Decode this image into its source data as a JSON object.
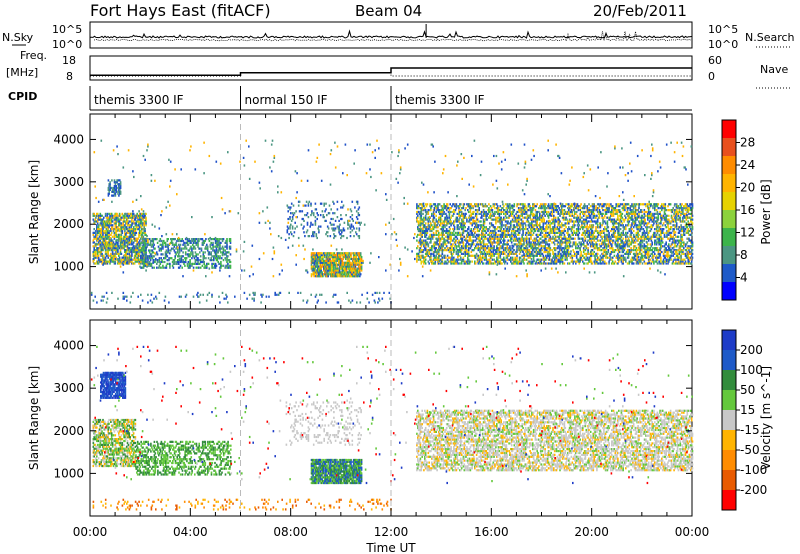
{
  "header": {
    "station": "Fort Hays East (fitACF)",
    "beam": "Beam 04",
    "date": "20/Feb/2011"
  },
  "status_panels": {
    "nsky_label": "N.Sky",
    "nsearch_label": "N.Search",
    "noise_ticks_left": [
      "10^5",
      "10^0"
    ],
    "noise_ticks_right": [
      "10^5",
      "10^0"
    ],
    "freq_label": "Freq.",
    "freq_unit": "[MHz]",
    "freq_ticks": [
      "18",
      "8"
    ],
    "nave_label": "Nave",
    "nave_ticks": [
      "60",
      "0"
    ],
    "cpid_label": "CPID",
    "cpid_segments": [
      {
        "label": "themis 3300 IF",
        "start": 0,
        "end": 6
      },
      {
        "label": "normal 150 IF",
        "start": 6,
        "end": 12
      },
      {
        "label": "themis 3300 IF",
        "start": 12,
        "end": 24
      }
    ],
    "freq_levels": [
      {
        "start": 0,
        "end": 6,
        "value": 10
      },
      {
        "start": 6,
        "end": 12,
        "value": 11
      },
      {
        "start": 12,
        "end": 24,
        "value": 13
      }
    ],
    "nave_levels": [
      {
        "start": 0,
        "end": 6,
        "value": 10
      },
      {
        "start": 6,
        "end": 12,
        "value": 18
      },
      {
        "start": 12,
        "end": 24,
        "value": 10
      }
    ]
  },
  "chart_data": [
    {
      "type": "heatmap",
      "name": "power",
      "ylabel": "Slant Range [km]",
      "xlim": [
        0,
        24
      ],
      "ylim": [
        0,
        4600
      ],
      "yticks": [
        1000,
        2000,
        3000,
        4000
      ],
      "colorbar": {
        "label": "Power [dB]",
        "ticks": [
          "28",
          "24",
          "20",
          "16",
          "12",
          "8",
          "4"
        ],
        "colors": [
          "#ff0000",
          "#e8501e",
          "#ff8c00",
          "#ffb400",
          "#e6d200",
          "#8cd23c",
          "#3cb44b",
          "#4b9682",
          "#1e5ac8",
          "#0000ff"
        ]
      },
      "scatter_regions": [
        {
          "t0": 0.1,
          "t1": 2.2,
          "r0": 1100,
          "r1": 2300,
          "density": 0.6,
          "palette": [
            "#1e50c8",
            "#1e5ac8",
            "#4b9682",
            "#3cb44b",
            "#e6d200",
            "#ffb400"
          ]
        },
        {
          "t0": 0.7,
          "t1": 1.2,
          "r0": 2700,
          "r1": 3100,
          "density": 0.6,
          "palette": [
            "#1e50c8",
            "#4b9682"
          ]
        },
        {
          "t0": 2.0,
          "t1": 5.6,
          "r0": 1000,
          "r1": 1700,
          "density": 0.35,
          "palette": [
            "#1e50c8",
            "#4b9682",
            "#3cb44b"
          ]
        },
        {
          "t0": 8.8,
          "t1": 10.8,
          "r0": 800,
          "r1": 1350,
          "density": 0.8,
          "palette": [
            "#1e50c8",
            "#4b9682",
            "#3cb44b",
            "#e6d200",
            "#ff8c00",
            "#ffb400"
          ]
        },
        {
          "t0": 7.8,
          "t1": 10.8,
          "r0": 1700,
          "r1": 2600,
          "density": 0.12,
          "palette": [
            "#1e50c8",
            "#4b9682"
          ]
        },
        {
          "t0": 13.0,
          "t1": 24.0,
          "r0": 1100,
          "r1": 2500,
          "density": 0.45,
          "palette": [
            "#1e50c8",
            "#1e5ac8",
            "#4b9682",
            "#3cb44b",
            "#e6d200",
            "#ffb400"
          ]
        },
        {
          "t0": 0.0,
          "t1": 12.0,
          "r0": 180,
          "r1": 420,
          "density": 0.06,
          "palette": [
            "#1e50c8",
            "#4b9682"
          ]
        },
        {
          "t0": 0.0,
          "t1": 24.0,
          "r0": 800,
          "r1": 4000,
          "density": 0.01,
          "palette": [
            "#1e50c8",
            "#4b9682",
            "#ffb400"
          ]
        }
      ]
    },
    {
      "type": "heatmap",
      "name": "velocity",
      "ylabel": "Slant Range [km]",
      "xlabel": "Time UT",
      "xlim": [
        0,
        24
      ],
      "ylim": [
        0,
        4600
      ],
      "yticks": [
        1000,
        2000,
        3000,
        4000
      ],
      "xtick_labels": [
        "00:00",
        "04:00",
        "08:00",
        "12:00",
        "16:00",
        "20:00",
        "00:00"
      ],
      "colorbar": {
        "label": "Velocity [m s^-1]",
        "ticks": [
          "200",
          "100",
          "50",
          "15",
          "-15",
          "-50",
          "-100",
          "-200"
        ],
        "colors": [
          "#1e3cc8",
          "#1e5ac8",
          "#328c3c",
          "#64c83c",
          "#c8c8c8",
          "#ffb400",
          "#ff8c00",
          "#e85a00",
          "#ff0000"
        ]
      },
      "scatter_regions": [
        {
          "t0": 0.1,
          "t1": 1.8,
          "r0": 1200,
          "r1": 2300,
          "density": 0.5,
          "palette": [
            "#c8c8c8",
            "#64c83c",
            "#ffb400",
            "#328c3c"
          ]
        },
        {
          "t0": 0.4,
          "t1": 1.4,
          "r0": 2800,
          "r1": 3400,
          "density": 0.7,
          "palette": [
            "#1e3cc8",
            "#1e5ac8"
          ]
        },
        {
          "t0": 1.8,
          "t1": 5.6,
          "r0": 1000,
          "r1": 1800,
          "density": 0.35,
          "palette": [
            "#64c83c",
            "#328c3c"
          ]
        },
        {
          "t0": 8.8,
          "t1": 10.8,
          "r0": 800,
          "r1": 1350,
          "density": 0.8,
          "palette": [
            "#64c83c",
            "#328c3c",
            "#1e5ac8"
          ]
        },
        {
          "t0": 7.8,
          "t1": 10.8,
          "r0": 1700,
          "r1": 2700,
          "density": 0.12,
          "palette": [
            "#c8c8c8"
          ]
        },
        {
          "t0": 13.0,
          "t1": 24.0,
          "r0": 1100,
          "r1": 2500,
          "density": 0.45,
          "palette": [
            "#c8c8c8",
            "#c8c8c8",
            "#c8c8c8",
            "#64c83c",
            "#ffb400"
          ]
        },
        {
          "t0": 0.0,
          "t1": 12.0,
          "r0": 180,
          "r1": 420,
          "density": 0.08,
          "palette": [
            "#ffb400",
            "#ff8c00",
            "#e85a00"
          ]
        },
        {
          "t0": 0.0,
          "t1": 24.0,
          "r0": 800,
          "r1": 4000,
          "density": 0.01,
          "palette": [
            "#c8c8c8",
            "#64c83c",
            "#ff0000",
            "#1e3cc8"
          ]
        }
      ]
    }
  ]
}
